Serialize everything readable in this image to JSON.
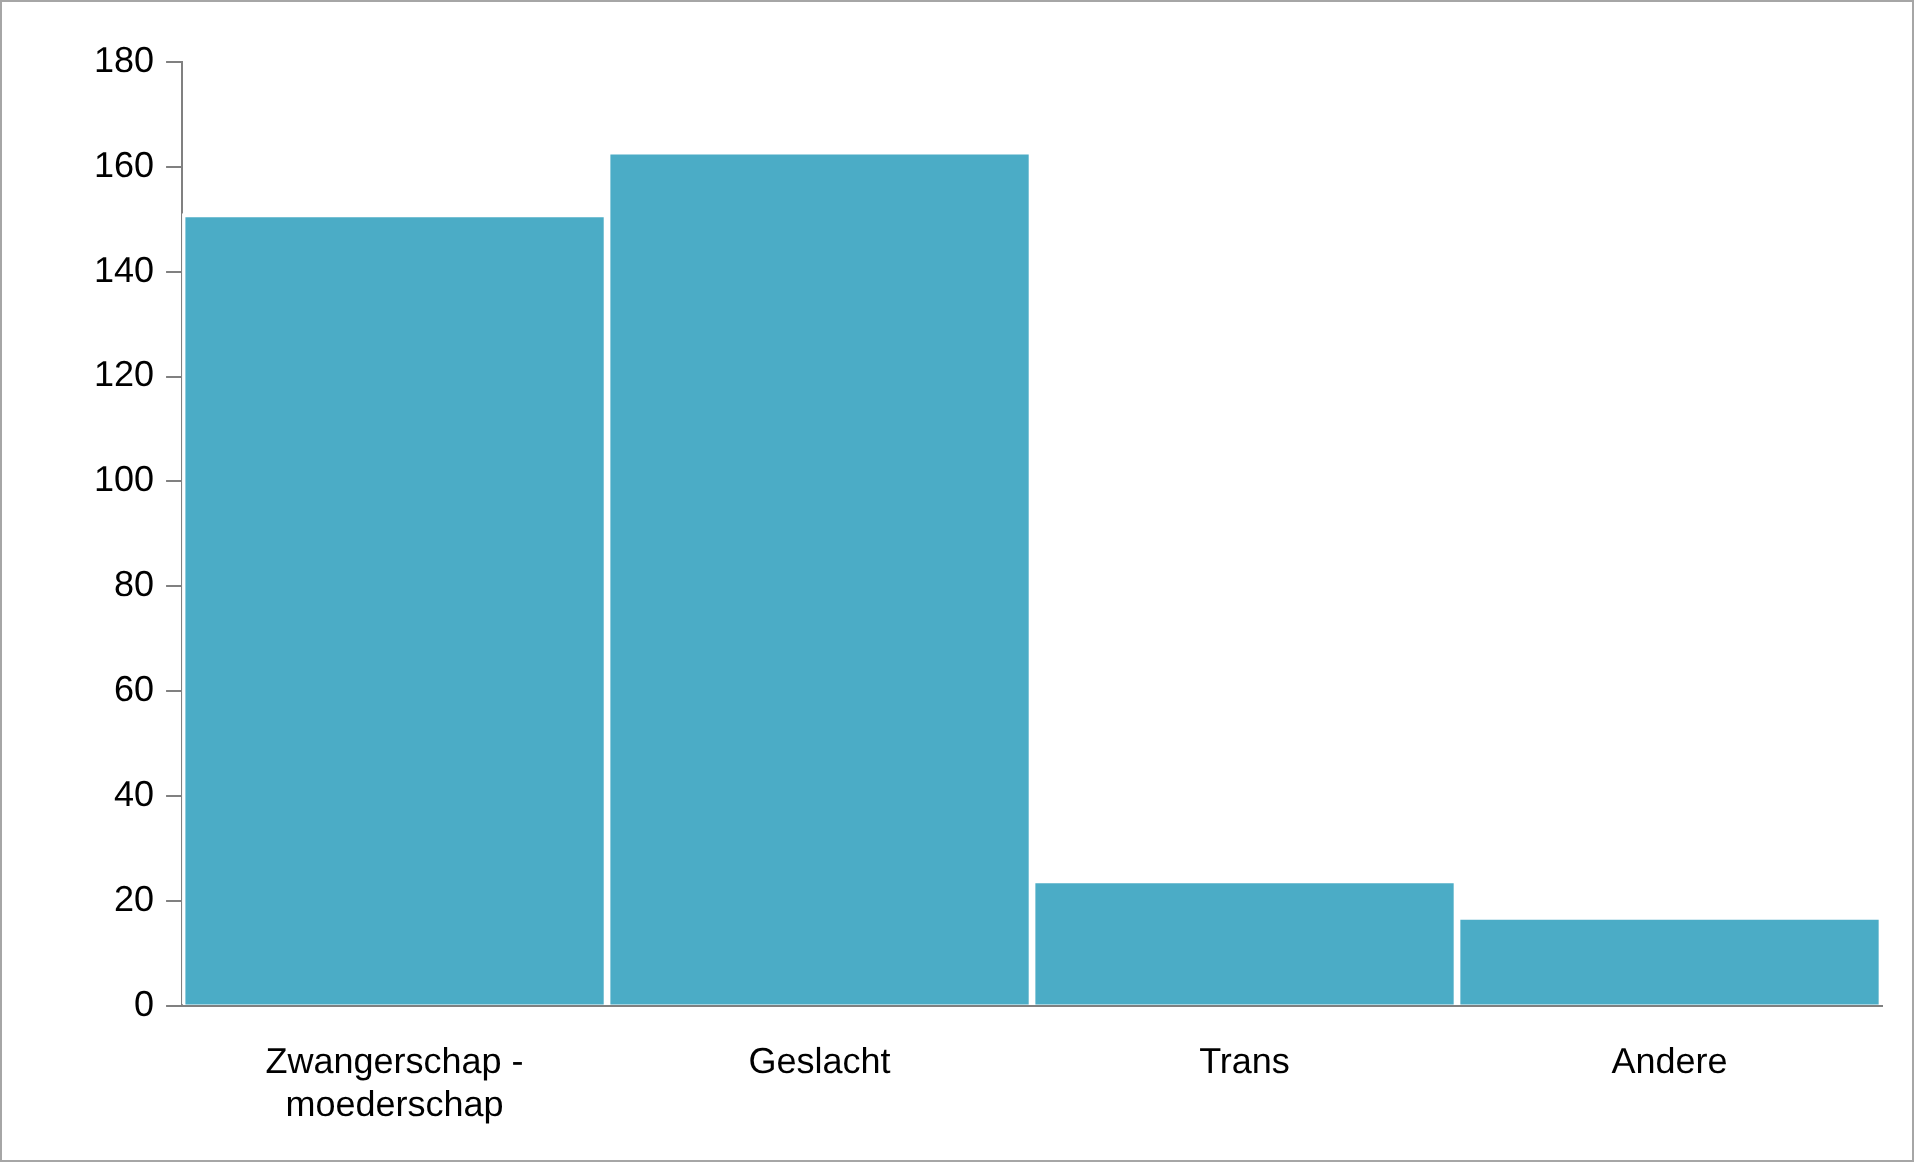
{
  "chart_data": {
    "type": "bar",
    "categories": [
      "Zwangerschap - moederschap",
      "Geslacht",
      "Trans",
      "Andere"
    ],
    "values": [
      151,
      163,
      24,
      17
    ],
    "color": "#4bacc6",
    "ylim": [
      0,
      180
    ],
    "yticks": [
      0,
      20,
      40,
      60,
      80,
      100,
      120,
      140,
      160,
      180
    ],
    "grid": false,
    "legend": false
  }
}
